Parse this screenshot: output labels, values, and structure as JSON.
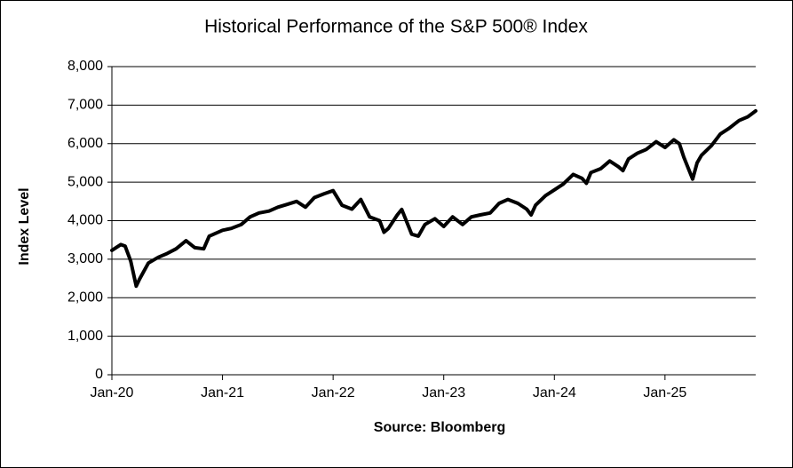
{
  "chart_data": {
    "type": "line",
    "title": "Historical Performance of the S&P 500® Index",
    "y_label": "Index Level",
    "x_label": "Source: Bloomberg",
    "x": [
      2020.0,
      2020.08,
      2020.12,
      2020.17,
      2020.22,
      2020.25,
      2020.33,
      2020.42,
      2020.5,
      2020.58,
      2020.67,
      2020.75,
      2020.83,
      2020.88,
      2021.0,
      2021.08,
      2021.17,
      2021.25,
      2021.33,
      2021.42,
      2021.5,
      2021.58,
      2021.67,
      2021.75,
      2021.83,
      2021.92,
      2022.0,
      2022.08,
      2022.17,
      2022.25,
      2022.33,
      2022.42,
      2022.46,
      2022.5,
      2022.58,
      2022.62,
      2022.71,
      2022.77,
      2022.83,
      2022.92,
      2023.0,
      2023.08,
      2023.17,
      2023.25,
      2023.33,
      2023.42,
      2023.5,
      2023.58,
      2023.67,
      2023.75,
      2023.79,
      2023.83,
      2023.92,
      2024.0,
      2024.08,
      2024.17,
      2024.25,
      2024.29,
      2024.33,
      2024.42,
      2024.5,
      2024.58,
      2024.62,
      2024.67,
      2024.75,
      2024.83,
      2024.92,
      2025.0,
      2025.08,
      2025.13,
      2025.17,
      2025.25,
      2025.29,
      2025.33,
      2025.42,
      2025.5,
      2025.58,
      2025.67,
      2025.75,
      2025.82
    ],
    "series": [
      {
        "name": "S&P 500",
        "color": "#000000",
        "values": [
          3230,
          3380,
          3340,
          2950,
          2300,
          2480,
          2900,
          3050,
          3150,
          3270,
          3480,
          3300,
          3270,
          3600,
          3750,
          3800,
          3900,
          4100,
          4200,
          4250,
          4350,
          4420,
          4500,
          4350,
          4600,
          4700,
          4780,
          4400,
          4300,
          4550,
          4100,
          4000,
          3700,
          3800,
          4150,
          4290,
          3650,
          3600,
          3900,
          4050,
          3850,
          4100,
          3900,
          4100,
          4150,
          4200,
          4450,
          4550,
          4450,
          4300,
          4150,
          4400,
          4650,
          4800,
          4950,
          5200,
          5100,
          4970,
          5250,
          5350,
          5550,
          5400,
          5300,
          5600,
          5750,
          5850,
          6050,
          5900,
          6100,
          6000,
          5650,
          5080,
          5500,
          5700,
          5950,
          6250,
          6400,
          6600,
          6700,
          6850
        ]
      }
    ],
    "xlim": [
      2020,
      2025.82
    ],
    "xticks": [
      {
        "value": 2020,
        "label": "Jan-20"
      },
      {
        "value": 2021,
        "label": "Jan-21"
      },
      {
        "value": 2022,
        "label": "Jan-22"
      },
      {
        "value": 2023,
        "label": "Jan-23"
      },
      {
        "value": 2024,
        "label": "Jan-24"
      },
      {
        "value": 2025,
        "label": "Jan-25"
      }
    ],
    "ylim": [
      0,
      8000
    ],
    "yticks": [
      0,
      {
        "value": 1000,
        "label": "1,000"
      },
      {
        "value": 2000,
        "label": "2,000"
      },
      {
        "value": 3000,
        "label": "3,000"
      },
      {
        "value": 4000,
        "label": "4,000"
      },
      {
        "value": 5000,
        "label": "5,000"
      },
      {
        "value": 6000,
        "label": "6,000"
      },
      {
        "value": 7000,
        "label": "7,000"
      },
      {
        "value": 8000,
        "label": "8,000"
      }
    ],
    "grid": true
  }
}
